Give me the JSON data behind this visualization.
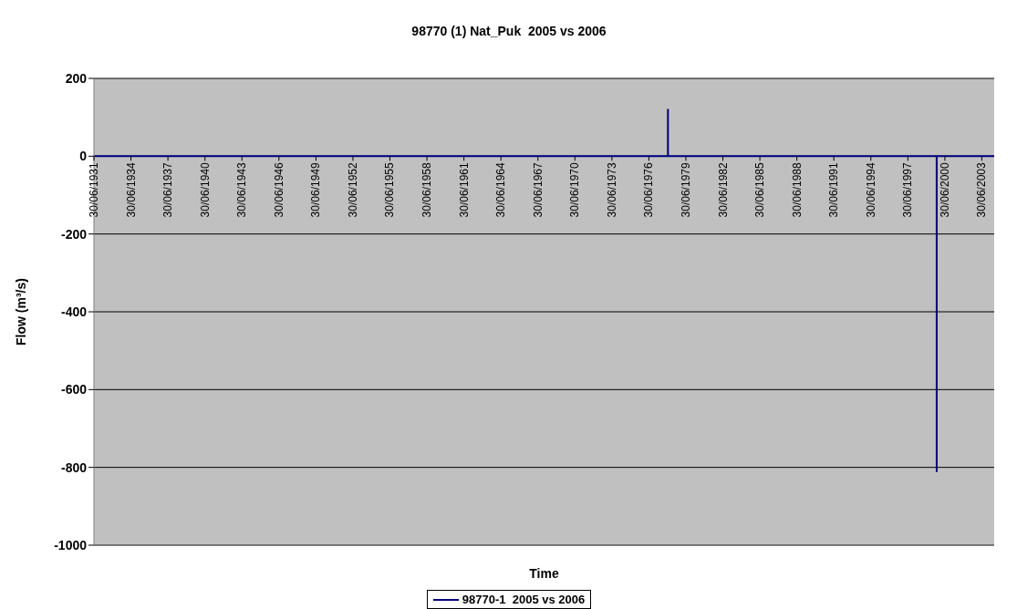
{
  "chart_data": {
    "type": "line",
    "title": "98770 (1) Nat_Puk  2005 vs 2006",
    "xlabel": "Time",
    "ylabel": "Flow (m³/s)",
    "x": [
      "1931-06-30",
      "1978-01-14",
      "1978-01-15",
      "1978-01-16",
      "1999-10-31",
      "1999-11-01",
      "1999-11-02",
      "2004-06-30"
    ],
    "series": [
      {
        "name": "98770-1  2005 vs 2006",
        "color": "#000080",
        "values": [
          0,
          0,
          120,
          0,
          0,
          -810,
          0,
          0
        ]
      }
    ],
    "xlim": [
      "1931-06-30",
      "2004-06-30"
    ],
    "xticks": [
      {
        "value": "1931-06-30",
        "label": "30/06/1931"
      },
      {
        "value": "1934-06-30",
        "label": "30/06/1934"
      },
      {
        "value": "1937-06-30",
        "label": "30/06/1937"
      },
      {
        "value": "1940-06-30",
        "label": "30/06/1940"
      },
      {
        "value": "1943-06-30",
        "label": "30/06/1943"
      },
      {
        "value": "1946-06-30",
        "label": "30/06/1946"
      },
      {
        "value": "1949-06-30",
        "label": "30/06/1949"
      },
      {
        "value": "1952-06-30",
        "label": "30/06/1952"
      },
      {
        "value": "1955-06-30",
        "label": "30/06/1955"
      },
      {
        "value": "1958-06-30",
        "label": "30/06/1958"
      },
      {
        "value": "1961-06-30",
        "label": "30/06/1961"
      },
      {
        "value": "1964-06-30",
        "label": "30/06/1964"
      },
      {
        "value": "1967-06-30",
        "label": "30/06/1967"
      },
      {
        "value": "1970-06-30",
        "label": "30/06/1970"
      },
      {
        "value": "1973-06-30",
        "label": "30/06/1973"
      },
      {
        "value": "1976-06-30",
        "label": "30/06/1976"
      },
      {
        "value": "1979-06-30",
        "label": "30/06/1979"
      },
      {
        "value": "1982-06-30",
        "label": "30/06/1982"
      },
      {
        "value": "1985-06-30",
        "label": "30/06/1985"
      },
      {
        "value": "1988-06-30",
        "label": "30/06/1988"
      },
      {
        "value": "1991-06-30",
        "label": "30/06/1991"
      },
      {
        "value": "1994-06-30",
        "label": "30/06/1994"
      },
      {
        "value": "1997-06-30",
        "label": "30/06/1997"
      },
      {
        "value": "2000-06-30",
        "label": "30/06/2000"
      },
      {
        "value": "2003-06-30",
        "label": "30/06/2003"
      }
    ],
    "ylim": [
      -1000,
      200
    ],
    "yticks": [
      -1000,
      -800,
      -600,
      -400,
      -200,
      0,
      200
    ],
    "grid": "y",
    "legend": "bottom",
    "marker": "none",
    "line_style": "solid"
  }
}
